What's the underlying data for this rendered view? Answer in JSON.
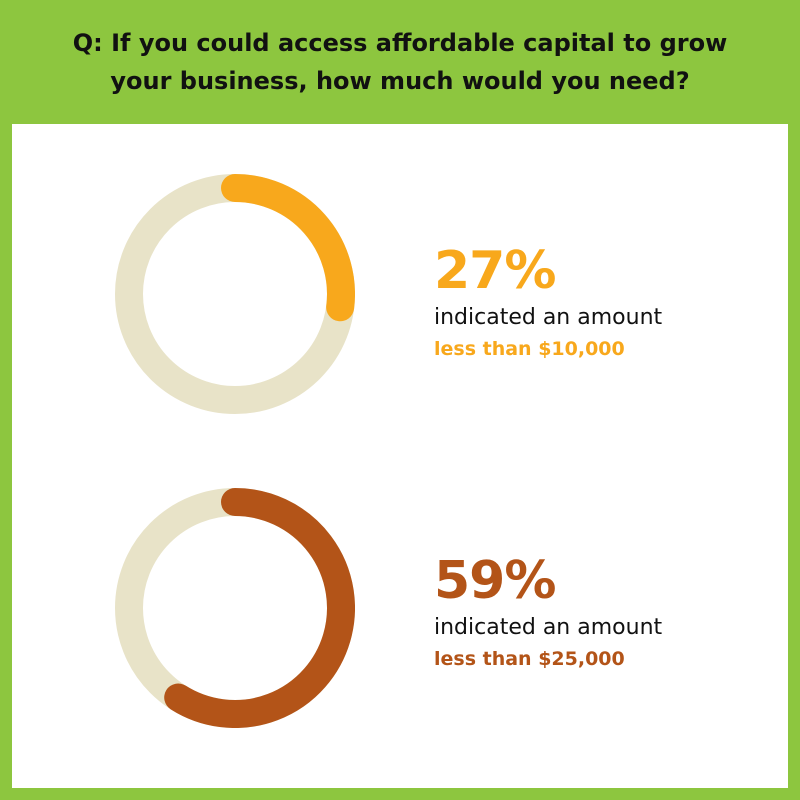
{
  "header": {
    "question": "Q: If you could access affordable capital to grow your business, how much would you need?"
  },
  "colors": {
    "frame": "#8dc63f",
    "track": "#e8e3c8",
    "orange": "#f8a81c",
    "rust": "#b35418"
  },
  "chart_data": [
    {
      "type": "pie",
      "values": [
        27
      ],
      "label_pct": "27%",
      "description": "indicated an amount",
      "amount_label": "less than $10,000",
      "color": "#f8a81c"
    },
    {
      "type": "pie",
      "values": [
        59
      ],
      "label_pct": "59%",
      "description": "indicated an amount",
      "amount_label": "less than $25,000",
      "color": "#b35418"
    }
  ]
}
